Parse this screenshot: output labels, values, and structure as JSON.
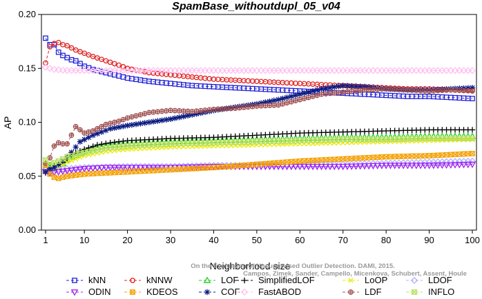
{
  "chart_data": {
    "type": "line",
    "title": "SpamBase_withoutdupl_05_v04",
    "xlabel": "Neighborhood size",
    "ylabel": "AP",
    "xlim": [
      1,
      100
    ],
    "ylim": [
      0,
      0.2
    ],
    "x_ticks": [
      "1",
      "10",
      "20",
      "30",
      "40",
      "50",
      "60",
      "70",
      "80",
      "90",
      "100"
    ],
    "y_ticks": [
      "0.00",
      "0.05",
      "0.10",
      "0.15",
      "0.20"
    ],
    "grid": false,
    "legend_position": "bottom",
    "watermark": "Campos, Zimek, Sander, Campello, Micenkova, Schubert, Assent, Houle",
    "watermark_line1": "On the Evaluation of Unsupervised Outlier Detection. DAMI, 2015.",
    "series": [
      {
        "name": "kNN",
        "color": "#1f1fd6",
        "marker": "square",
        "line": "dash",
        "points": [
          [
            1,
            0.178
          ],
          [
            2,
            0.172
          ],
          [
            3,
            0.172
          ],
          [
            4,
            0.165
          ],
          [
            5,
            0.162
          ],
          [
            6,
            0.16
          ],
          [
            7,
            0.158
          ],
          [
            8,
            0.157
          ],
          [
            10,
            0.152
          ],
          [
            12,
            0.149
          ],
          [
            15,
            0.146
          ],
          [
            18,
            0.143
          ],
          [
            20,
            0.141
          ],
          [
            25,
            0.138
          ],
          [
            30,
            0.136
          ],
          [
            35,
            0.134
          ],
          [
            40,
            0.133
          ],
          [
            45,
            0.132
          ],
          [
            50,
            0.131
          ],
          [
            55,
            0.13
          ],
          [
            60,
            0.129
          ],
          [
            65,
            0.128
          ],
          [
            70,
            0.127
          ],
          [
            75,
            0.126
          ],
          [
            80,
            0.125
          ],
          [
            85,
            0.124
          ],
          [
            90,
            0.124
          ],
          [
            95,
            0.123
          ],
          [
            100,
            0.122
          ]
        ]
      },
      {
        "name": "kNNW",
        "color": "#e02020",
        "marker": "circle",
        "line": "dash",
        "points": [
          [
            1,
            0.155
          ],
          [
            2,
            0.17
          ],
          [
            3,
            0.173
          ],
          [
            4,
            0.174
          ],
          [
            5,
            0.172
          ],
          [
            6,
            0.171
          ],
          [
            7,
            0.169
          ],
          [
            8,
            0.167
          ],
          [
            10,
            0.164
          ],
          [
            12,
            0.161
          ],
          [
            15,
            0.157
          ],
          [
            18,
            0.153
          ],
          [
            20,
            0.15
          ],
          [
            25,
            0.146
          ],
          [
            30,
            0.144
          ],
          [
            35,
            0.142
          ],
          [
            40,
            0.14
          ],
          [
            45,
            0.139
          ],
          [
            50,
            0.138
          ],
          [
            55,
            0.137
          ],
          [
            60,
            0.136
          ],
          [
            65,
            0.135
          ],
          [
            70,
            0.134
          ],
          [
            75,
            0.133
          ],
          [
            80,
            0.132
          ],
          [
            85,
            0.131
          ],
          [
            90,
            0.131
          ],
          [
            95,
            0.13
          ],
          [
            100,
            0.13
          ]
        ]
      },
      {
        "name": "LOF",
        "color": "#22cc22",
        "marker": "triangle",
        "line": "dash",
        "points": [
          [
            1,
            0.058
          ],
          [
            2,
            0.06
          ],
          [
            3,
            0.057
          ],
          [
            5,
            0.062
          ],
          [
            7,
            0.068
          ],
          [
            10,
            0.073
          ],
          [
            13,
            0.077
          ],
          [
            16,
            0.079
          ],
          [
            20,
            0.08
          ],
          [
            25,
            0.081
          ],
          [
            30,
            0.082
          ],
          [
            40,
            0.083
          ],
          [
            50,
            0.084
          ],
          [
            60,
            0.085
          ],
          [
            70,
            0.086
          ],
          [
            80,
            0.086
          ],
          [
            90,
            0.087
          ],
          [
            100,
            0.087
          ]
        ]
      },
      {
        "name": "SimplifiedLOF",
        "color": "#000000",
        "marker": "plus",
        "line": "dash",
        "points": [
          [
            1,
            0.053
          ],
          [
            2,
            0.059
          ],
          [
            3,
            0.06
          ],
          [
            5,
            0.063
          ],
          [
            7,
            0.07
          ],
          [
            10,
            0.075
          ],
          [
            13,
            0.079
          ],
          [
            16,
            0.081
          ],
          [
            20,
            0.083
          ],
          [
            25,
            0.084
          ],
          [
            30,
            0.085
          ],
          [
            40,
            0.086
          ],
          [
            50,
            0.088
          ],
          [
            60,
            0.09
          ],
          [
            70,
            0.091
          ],
          [
            80,
            0.092
          ],
          [
            90,
            0.093
          ],
          [
            100,
            0.093
          ]
        ]
      },
      {
        "name": "LoOP",
        "color": "#e8e800",
        "marker": "x",
        "line": "dash",
        "points": [
          [
            1,
            0.055
          ],
          [
            2,
            0.057
          ],
          [
            4,
            0.058
          ],
          [
            6,
            0.063
          ],
          [
            8,
            0.066
          ],
          [
            10,
            0.069
          ],
          [
            15,
            0.073
          ],
          [
            20,
            0.075
          ],
          [
            30,
            0.077
          ],
          [
            40,
            0.078
          ],
          [
            50,
            0.079
          ],
          [
            60,
            0.08
          ],
          [
            70,
            0.081
          ],
          [
            80,
            0.082
          ],
          [
            90,
            0.083
          ],
          [
            100,
            0.084
          ]
        ]
      },
      {
        "name": "LDOF",
        "color": "#b0b0ff",
        "marker": "diamond",
        "line": "dash",
        "points": [
          [
            1,
            0.056
          ],
          [
            3,
            0.056
          ],
          [
            6,
            0.057
          ],
          [
            10,
            0.058
          ],
          [
            20,
            0.059
          ],
          [
            30,
            0.059
          ],
          [
            40,
            0.06
          ],
          [
            50,
            0.06
          ],
          [
            60,
            0.061
          ],
          [
            70,
            0.061
          ],
          [
            80,
            0.062
          ],
          [
            90,
            0.063
          ],
          [
            100,
            0.064
          ]
        ]
      },
      {
        "name": "ODIN",
        "color": "#a020f0",
        "marker": "triangle-down",
        "line": "dash",
        "points": [
          [
            1,
            0.054
          ],
          [
            2,
            0.053
          ],
          [
            4,
            0.054
          ],
          [
            6,
            0.055
          ],
          [
            8,
            0.056
          ],
          [
            10,
            0.057
          ],
          [
            15,
            0.058
          ],
          [
            20,
            0.058
          ],
          [
            30,
            0.058
          ],
          [
            40,
            0.059
          ],
          [
            50,
            0.059
          ],
          [
            60,
            0.059
          ],
          [
            70,
            0.059
          ],
          [
            80,
            0.06
          ],
          [
            90,
            0.06
          ],
          [
            100,
            0.061
          ]
        ]
      },
      {
        "name": "KDEOS",
        "color": "#f5a000",
        "marker": "square-x",
        "line": "dash",
        "points": [
          [
            1,
            0.06
          ],
          [
            2,
            0.052
          ],
          [
            3,
            0.049
          ],
          [
            4,
            0.048
          ],
          [
            6,
            0.05
          ],
          [
            8,
            0.051
          ],
          [
            10,
            0.052
          ],
          [
            15,
            0.053
          ],
          [
            20,
            0.054
          ],
          [
            30,
            0.056
          ],
          [
            40,
            0.058
          ],
          [
            50,
            0.061
          ],
          [
            60,
            0.064
          ],
          [
            70,
            0.066
          ],
          [
            80,
            0.068
          ],
          [
            90,
            0.069
          ],
          [
            100,
            0.071
          ]
        ]
      },
      {
        "name": "COF",
        "color": "#0a1a80",
        "marker": "star",
        "line": "dash",
        "points": [
          [
            1,
            0.054
          ],
          [
            2,
            0.057
          ],
          [
            3,
            0.058
          ],
          [
            5,
            0.064
          ],
          [
            7,
            0.072
          ],
          [
            9,
            0.082
          ],
          [
            12,
            0.088
          ],
          [
            16,
            0.094
          ],
          [
            20,
            0.097
          ],
          [
            25,
            0.1
          ],
          [
            30,
            0.103
          ],
          [
            35,
            0.107
          ],
          [
            40,
            0.111
          ],
          [
            45,
            0.114
          ],
          [
            50,
            0.117
          ],
          [
            55,
            0.121
          ],
          [
            60,
            0.126
          ],
          [
            65,
            0.131
          ],
          [
            70,
            0.134
          ],
          [
            75,
            0.133
          ],
          [
            80,
            0.131
          ],
          [
            85,
            0.13
          ],
          [
            90,
            0.13
          ],
          [
            95,
            0.131
          ],
          [
            100,
            0.132
          ]
        ]
      },
      {
        "name": "FastABOD",
        "color": "#ffc0f0",
        "marker": "diamond",
        "line": "dash",
        "points": [
          [
            1,
            0.151
          ],
          [
            3,
            0.149
          ],
          [
            6,
            0.148
          ],
          [
            10,
            0.148
          ],
          [
            20,
            0.148
          ],
          [
            30,
            0.148
          ],
          [
            40,
            0.148
          ],
          [
            50,
            0.148
          ],
          [
            60,
            0.148
          ],
          [
            70,
            0.148
          ],
          [
            80,
            0.148
          ],
          [
            90,
            0.148
          ],
          [
            100,
            0.148
          ]
        ]
      },
      {
        "name": "LDF",
        "color": "#a05050",
        "marker": "circle-plus",
        "line": "dash",
        "points": [
          [
            1,
            0.062
          ],
          [
            2,
            0.067
          ],
          [
            3,
            0.078
          ],
          [
            4,
            0.081
          ],
          [
            5,
            0.08
          ],
          [
            6,
            0.08
          ],
          [
            7,
            0.088
          ],
          [
            8,
            0.096
          ],
          [
            10,
            0.09
          ],
          [
            12,
            0.092
          ],
          [
            15,
            0.098
          ],
          [
            18,
            0.101
          ],
          [
            20,
            0.104
          ],
          [
            25,
            0.109
          ],
          [
            30,
            0.111
          ],
          [
            35,
            0.11
          ],
          [
            40,
            0.112
          ],
          [
            45,
            0.113
          ],
          [
            50,
            0.115
          ],
          [
            55,
            0.116
          ],
          [
            60,
            0.121
          ],
          [
            65,
            0.126
          ],
          [
            70,
            0.128
          ],
          [
            75,
            0.13
          ],
          [
            80,
            0.131
          ],
          [
            85,
            0.13
          ],
          [
            90,
            0.129
          ],
          [
            95,
            0.13
          ],
          [
            100,
            0.129
          ]
        ]
      },
      {
        "name": "INFLO",
        "color": "#b8e060",
        "marker": "hourglass",
        "line": "dash",
        "points": [
          [
            1,
            0.065
          ],
          [
            2,
            0.061
          ],
          [
            4,
            0.064
          ],
          [
            6,
            0.068
          ],
          [
            8,
            0.07
          ],
          [
            10,
            0.072
          ],
          [
            15,
            0.076
          ],
          [
            20,
            0.078
          ],
          [
            30,
            0.08
          ],
          [
            40,
            0.081
          ],
          [
            50,
            0.082
          ],
          [
            60,
            0.083
          ],
          [
            70,
            0.084
          ],
          [
            80,
            0.084
          ],
          [
            90,
            0.085
          ],
          [
            100,
            0.085
          ]
        ]
      }
    ],
    "legend_order": [
      "kNN",
      "kNNW",
      "LOF",
      "SimplifiedLOF",
      "LoOP",
      "LDOF",
      "ODIN",
      "KDEOS",
      "COF",
      "FastABOD",
      "LDF",
      "INFLO"
    ]
  }
}
